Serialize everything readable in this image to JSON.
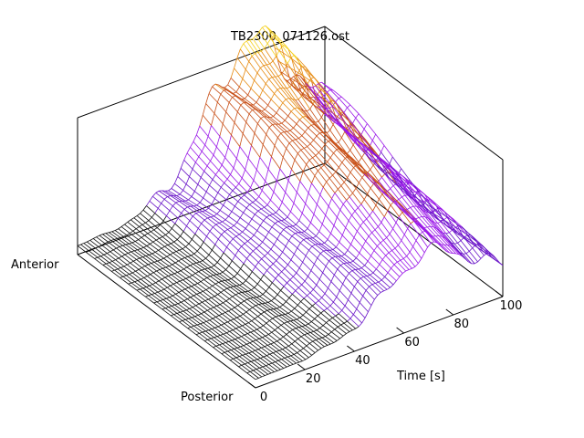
{
  "chart_data": {
    "type": "surface",
    "title": "TB2300_071126.ost",
    "xlabel": "Time [s]",
    "ylabel_min": "Posterior",
    "ylabel_max": "Anterior",
    "zlabel": "",
    "xlim": [
      0,
      100
    ],
    "x_ticks": [
      0,
      20,
      40,
      60,
      80,
      100
    ],
    "legend": "none",
    "grid": false,
    "colormap": [
      "#000000",
      "#5a00b4",
      "#a000ff",
      "#ff6000",
      "#ffe000"
    ],
    "surface": {
      "x_count": 80,
      "y_count": 22,
      "description": "Pressure-like surface rising from posterior to anterior; flat near 0 s, growing peaks between 40 and 100 s.",
      "base_level": 0.05,
      "ridge_peak_time": 70,
      "max_value": 1.0
    }
  }
}
